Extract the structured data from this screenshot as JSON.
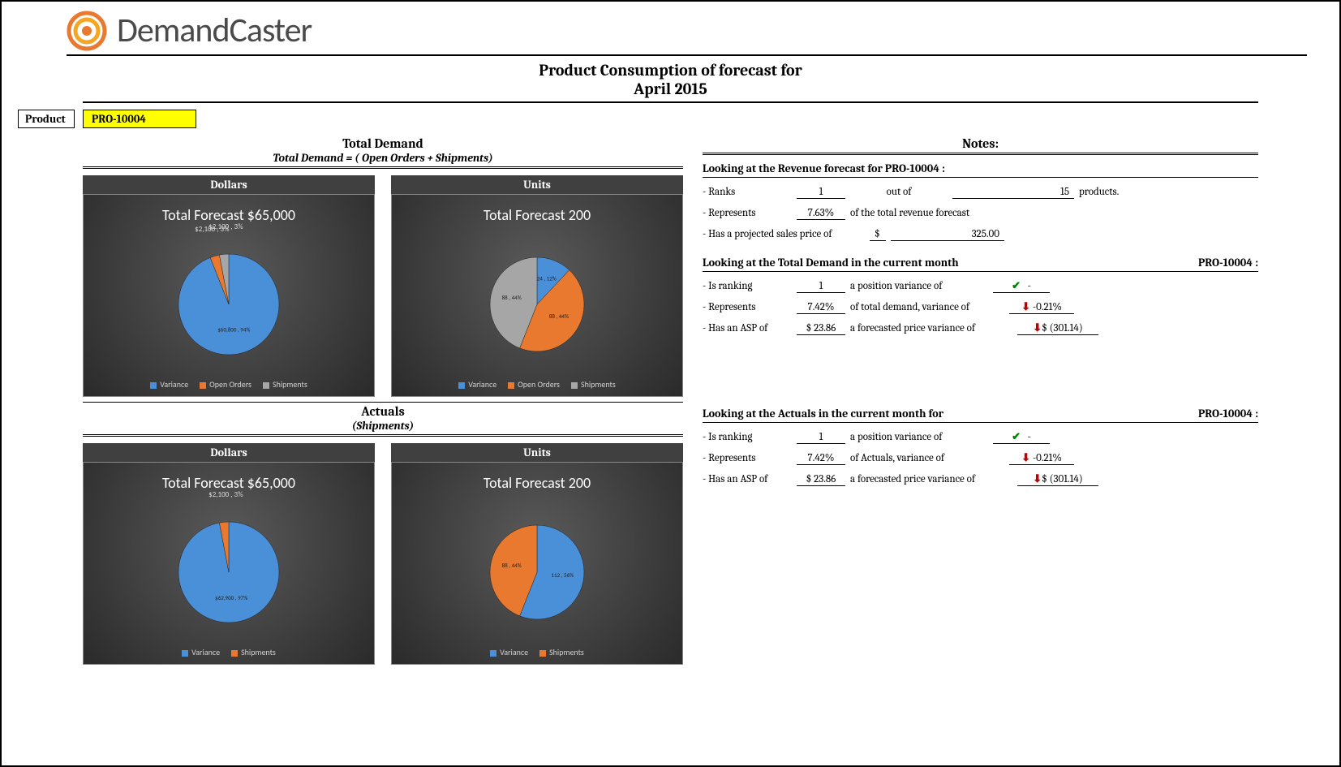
{
  "brand": "DemandCaster",
  "report_title": "Product Consumption of forecast for",
  "report_period": "April  2015",
  "product_label": "Product",
  "product_value": "PRO-10004",
  "total_demand": {
    "title": "Total Demand",
    "formula": "Total Demand = ( Open Orders + Shipments)",
    "dollars_header": "Dollars",
    "units_header": "Units",
    "dollars_chart": {
      "title": "Total  Forecast   $65,000",
      "type": "pie",
      "slices": [
        {
          "label": "Variance",
          "value": 94,
          "color": "#4a90d9",
          "display": "$60,800 , 94%"
        },
        {
          "label": "Open Orders",
          "value": 3,
          "color": "#e8792e",
          "display": "$2,100 , 3%"
        },
        {
          "label": "Shipments",
          "value": 3,
          "color": "#a6a6a6",
          "display": "$2,100 , 3%"
        }
      ],
      "legend": [
        "Variance",
        "Open Orders",
        "Shipments"
      ],
      "legend_colors": [
        "#4a90d9",
        "#e8792e",
        "#a6a6a6"
      ]
    },
    "units_chart": {
      "title": "Total  Forecast    200",
      "type": "pie",
      "slices": [
        {
          "label": "Variance",
          "value": 12,
          "color": "#4a90d9",
          "display": "24 , 12%"
        },
        {
          "label": "Open Orders",
          "value": 44,
          "color": "#e8792e",
          "display": "88 , 44%"
        },
        {
          "label": "Shipments",
          "value": 44,
          "color": "#a6a6a6",
          "display": "88 , 44%"
        }
      ],
      "legend": [
        "Variance",
        "Open Orders",
        "Shipments"
      ],
      "legend_colors": [
        "#4a90d9",
        "#e8792e",
        "#a6a6a6"
      ]
    }
  },
  "actuals": {
    "title": "Actuals",
    "sub": "(Shipments)",
    "dollars_header": "Dollars",
    "units_header": "Units",
    "dollars_chart": {
      "title": "Total  Forecast   $65,000",
      "type": "pie",
      "slices": [
        {
          "label": "Variance",
          "value": 97,
          "color": "#4a90d9",
          "display": "$62,900 , 97%"
        },
        {
          "label": "Shipments",
          "value": 3,
          "color": "#e8792e",
          "display": "$2,100 , 3%"
        }
      ],
      "legend": [
        "Variance",
        "Shipments"
      ],
      "legend_colors": [
        "#4a90d9",
        "#e8792e"
      ]
    },
    "units_chart": {
      "title": "Total  Forecast     200",
      "type": "pie",
      "slices": [
        {
          "label": "Variance",
          "value": 56,
          "color": "#4a90d9",
          "display": "112 , 56%"
        },
        {
          "label": "Shipments",
          "value": 44,
          "color": "#e8792e",
          "display": "88 , 44%"
        }
      ],
      "legend": [
        "Variance",
        "Shipments"
      ],
      "legend_colors": [
        "#4a90d9",
        "#e8792e"
      ]
    }
  },
  "notes": {
    "title": "Notes:",
    "revenue": {
      "header": "Looking at the Revenue forecast for PRO-10004 :",
      "rank_label": "- Ranks",
      "rank": "1",
      "out_of_label": "out of",
      "out_of": "15",
      "products_suffix": "products.",
      "represents_label": "- Represents",
      "represents": "7.63%",
      "represents_suffix": "of the total revenue forecast",
      "price_label": "- Has a projected sales price of",
      "price_currency": "$",
      "price": "325.00"
    },
    "demand": {
      "header_prefix": "Looking at the Total Demand in the current month",
      "header_product": "PRO-10004 :",
      "rank_label": "- Is ranking",
      "rank": "1",
      "rank_suffix": "a position variance of",
      "rank_var": "-",
      "rank_dir": "up",
      "represents_label": "- Represents",
      "represents": "7.42%",
      "represents_suffix": "of total demand, variance of",
      "represents_var": "-0.21%",
      "represents_dir": "down",
      "asp_label": "- Has an ASP of",
      "asp": "$  23.86",
      "asp_suffix": "a forecasted price variance of",
      "asp_var": "$   (301.14)",
      "asp_dir": "down"
    },
    "actuals": {
      "header_prefix": "Looking at the Actuals in the current month for",
      "header_product": "PRO-10004 :",
      "rank_label": "- Is ranking",
      "rank": "1",
      "rank_suffix": "a position variance of",
      "rank_var": "-",
      "rank_dir": "up",
      "represents_label": "- Represents",
      "represents": "7.42%",
      "represents_suffix": "of Actuals, variance of",
      "represents_var": "-0.21%",
      "represents_dir": "down",
      "asp_label": "- Has an ASP of",
      "asp": "$  23.86",
      "asp_suffix": "a forecasted price variance of",
      "asp_var": "$   (301.14)",
      "asp_dir": "down"
    }
  },
  "colors": {
    "variance": "#4a90d9",
    "open_orders": "#e8792e",
    "shipments_gray": "#a6a6a6",
    "shipments_orange": "#e8792e"
  }
}
